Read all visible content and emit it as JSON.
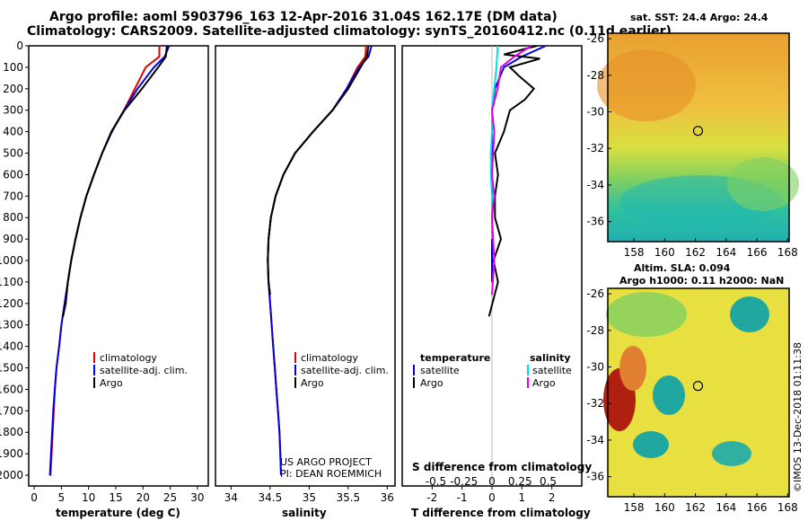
{
  "title_line1": "Argo profile: aoml 5903796_163 12-Apr-2016 31.04S 162.17E (DM data)",
  "title_line2": "Climatology: CARS2009. Satellite-adjusted climatology: synTS_20160412.nc (0.11d earlier)",
  "map_sst_title": "sat. SST: 24.4 Argo: 24.4",
  "map_sla_title1": "Altim. SLA: 0.094",
  "map_sla_title2": "Argo h1000: 0.11 h2000: NaN",
  "timestamp": "©IMOS 13-Dec-2018 01:11:38",
  "project_line1": "US ARGO PROJECT",
  "project_line2": "PI: DEAN ROEMMICH",
  "colors": {
    "climatology": "#e00000",
    "satellite": "#0000e0",
    "argo": "#000000",
    "sat_salinity": "#00e0e0",
    "argo_salinity": "#e000e0"
  },
  "legend_left": [
    "climatology",
    "satellite-adj. clim.",
    "Argo"
  ],
  "legend_diff_temp": {
    "header": "temperature",
    "items": [
      "satellite",
      "Argo"
    ]
  },
  "legend_diff_sal": {
    "header": "salinity",
    "items": [
      "satellite",
      "Argo"
    ]
  },
  "chart_data": [
    {
      "type": "line",
      "xlabel": "temperature (deg C)",
      "ylabel": "",
      "xlim": [
        -1,
        32
      ],
      "ylim": [
        2050,
        0
      ],
      "xticks": [
        0,
        5,
        10,
        15,
        20,
        25,
        30
      ],
      "yticks": [
        0,
        100,
        200,
        300,
        400,
        500,
        600,
        700,
        800,
        900,
        1000,
        1100,
        1200,
        1300,
        1400,
        1500,
        1600,
        1700,
        1800,
        1900,
        2000
      ],
      "series": [
        {
          "name": "climatology",
          "x": [
            23.0,
            23.0,
            20.5,
            18.5,
            16.5,
            14.2,
            12.5,
            11.0,
            9.6,
            8.5,
            7.6,
            6.8,
            6.2,
            5.6,
            5.0,
            4.6,
            4.1,
            3.8,
            3.6,
            3.4,
            3.2,
            3.0,
            2.9
          ],
          "y": [
            0,
            50,
            100,
            200,
            300,
            400,
            500,
            600,
            700,
            800,
            900,
            1000,
            1100,
            1200,
            1300,
            1400,
            1500,
            1600,
            1700,
            1800,
            1900,
            2000,
            2000
          ]
        },
        {
          "name": "satellite-adj. clim.",
          "x": [
            24.8,
            24.0,
            22.0,
            19.0,
            16.5,
            14.3,
            12.5,
            11.0,
            9.6,
            8.5,
            7.6,
            6.8,
            6.2,
            5.6,
            5.0,
            4.6,
            4.1,
            3.8,
            3.5,
            3.3,
            3.1,
            2.9
          ],
          "y": [
            0,
            50,
            100,
            200,
            300,
            400,
            500,
            600,
            700,
            800,
            900,
            1000,
            1100,
            1200,
            1300,
            1400,
            1500,
            1600,
            1700,
            1800,
            1900,
            2000
          ]
        },
        {
          "name": "Argo",
          "x": [
            24.4,
            24.2,
            22.8,
            19.8,
            16.6,
            14.2,
            12.5,
            11.0,
            9.6,
            8.5,
            7.6,
            6.8,
            6.2,
            5.8,
            5.3
          ],
          "y": [
            0,
            50,
            100,
            200,
            300,
            400,
            500,
            600,
            700,
            800,
            900,
            1000,
            1100,
            1200,
            1260
          ]
        }
      ]
    },
    {
      "type": "line",
      "xlabel": "salinity",
      "ylabel": "",
      "xlim": [
        33.8,
        36.1
      ],
      "ylim": [
        2050,
        0
      ],
      "xticks": [
        34,
        34.5,
        35,
        35.5,
        36
      ],
      "series": [
        {
          "name": "climatology",
          "x": [
            35.73,
            35.72,
            35.62,
            35.48,
            35.3,
            35.05,
            34.82,
            34.67,
            34.57,
            34.51,
            34.48,
            34.47,
            34.48,
            34.5,
            34.52,
            34.54,
            34.56,
            34.58,
            34.6,
            34.62,
            34.63,
            34.64
          ],
          "y": [
            0,
            50,
            100,
            200,
            300,
            400,
            500,
            600,
            700,
            800,
            900,
            1000,
            1100,
            1200,
            1300,
            1400,
            1500,
            1600,
            1700,
            1800,
            1900,
            2000
          ]
        },
        {
          "name": "satellite-adj. clim.",
          "x": [
            35.8,
            35.76,
            35.64,
            35.48,
            35.3,
            35.05,
            34.82,
            34.67,
            34.57,
            34.51,
            34.48,
            34.47,
            34.48,
            34.5,
            34.52,
            34.54,
            34.56,
            34.58,
            34.6,
            34.62,
            34.63,
            34.64
          ],
          "y": [
            0,
            50,
            100,
            200,
            300,
            400,
            500,
            600,
            700,
            800,
            900,
            1000,
            1100,
            1200,
            1300,
            1400,
            1500,
            1600,
            1700,
            1800,
            1900,
            2000
          ]
        },
        {
          "name": "Argo",
          "x": [
            35.76,
            35.74,
            35.66,
            35.5,
            35.3,
            35.05,
            34.82,
            34.67,
            34.57,
            34.51,
            34.48,
            34.47,
            34.48,
            34.5
          ],
          "y": [
            0,
            50,
            100,
            200,
            300,
            400,
            500,
            600,
            700,
            800,
            900,
            1000,
            1100,
            1160
          ]
        }
      ]
    },
    {
      "type": "line",
      "xlabel": "T difference from climatology",
      "x2label": "S difference from climatology",
      "ylabel": "",
      "xlim": [
        -3,
        3
      ],
      "ylim": [
        2050,
        0
      ],
      "xticks": [
        -2,
        -1,
        0,
        1,
        2
      ],
      "x2ticks": [
        -0.5,
        -0.25,
        0,
        0.25,
        0.5
      ],
      "series": [
        {
          "name": "temperature satellite",
          "x": [
            1.8,
            1.0,
            0.4,
            0.1,
            0.0,
            0.0,
            0.0,
            0.0,
            0.0,
            0.0,
            0.0,
            0.0,
            0.0
          ],
          "y": [
            0,
            50,
            100,
            200,
            300,
            400,
            500,
            600,
            700,
            800,
            900,
            1000,
            1100
          ]
        },
        {
          "name": "temperature Argo",
          "x": [
            1.5,
            0.4,
            1.6,
            0.6,
            0.9,
            1.4,
            1.1,
            0.6,
            0.4,
            0.1,
            0.2,
            0.1,
            0.1,
            0.3,
            0.05,
            0.2,
            -0.1
          ],
          "y": [
            0,
            40,
            60,
            100,
            140,
            200,
            250,
            300,
            400,
            500,
            600,
            700,
            800,
            900,
            1000,
            1100,
            1260
          ]
        },
        {
          "name": "salinity satellite",
          "x": [
            0.05,
            0.04,
            0.02,
            0.0,
            0.0,
            -0.01,
            -0.01,
            0.0,
            0.0,
            0.0
          ],
          "y": [
            0,
            100,
            200,
            300,
            400,
            500,
            600,
            700,
            800,
            900
          ]
        },
        {
          "name": "salinity Argo",
          "x": [
            0.35,
            0.2,
            0.08,
            0.05,
            0.0,
            0.02,
            0.01,
            0.0,
            0.02,
            0.0,
            0.02,
            0.0
          ],
          "y": [
            0,
            50,
            100,
            200,
            300,
            400,
            500,
            600,
            700,
            800,
            1000,
            1160
          ]
        }
      ]
    },
    {
      "type": "heatmap",
      "title": "sat. SST: 24.4 Argo: 24.4",
      "xlim": [
        156.3,
        168.1
      ],
      "ylim": [
        -37.1,
        -25.7
      ],
      "xticks": [
        158,
        160,
        162,
        164,
        166,
        168
      ],
      "yticks": [
        -26,
        -28,
        -30,
        -32,
        -34,
        -36
      ],
      "marker": {
        "lon": 162.17,
        "lat": -31.04
      }
    },
    {
      "type": "heatmap",
      "title": "Altim. SLA: 0.094  Argo h1000: 0.11 h2000: NaN",
      "xlim": [
        156.3,
        168.1
      ],
      "ylim": [
        -37.1,
        -25.7
      ],
      "xticks": [
        158,
        160,
        162,
        164,
        166,
        168
      ],
      "yticks": [
        -26,
        -28,
        -30,
        -32,
        -34,
        -36
      ],
      "marker": {
        "lon": 162.17,
        "lat": -31.04
      }
    }
  ]
}
